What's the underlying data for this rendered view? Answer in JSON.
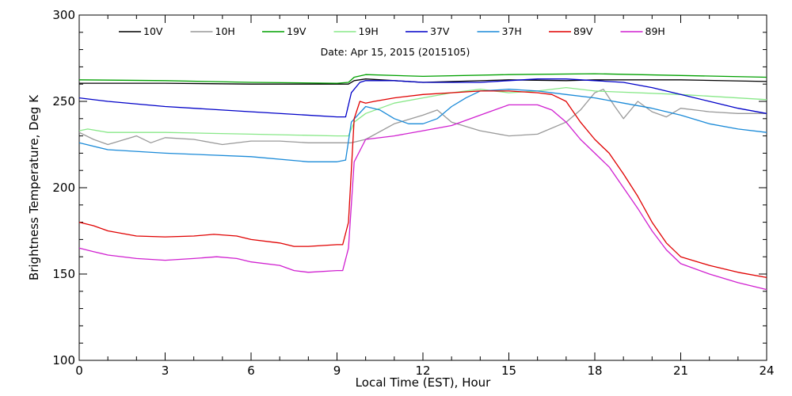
{
  "chart_data": {
    "type": "line",
    "title": "",
    "subtitle": "Date: Apr 15, 2015 (2015105)",
    "xlabel": "Local Time (EST), Hour",
    "ylabel": "Brightness Temperature, Deg K",
    "xlim": [
      0,
      24
    ],
    "ylim": [
      100,
      300
    ],
    "xticks": [
      0,
      3,
      6,
      9,
      12,
      15,
      18,
      21,
      24
    ],
    "yticks": [
      100,
      150,
      200,
      250,
      300
    ],
    "grid": false,
    "legend_position": "top",
    "series": [
      {
        "name": "10V",
        "color": "#000000",
        "points": [
          [
            0,
            260.5
          ],
          [
            3,
            260.5
          ],
          [
            6,
            260
          ],
          [
            9,
            260
          ],
          [
            9.4,
            260
          ],
          [
            9.6,
            262
          ],
          [
            10,
            263
          ],
          [
            11,
            262
          ],
          [
            12,
            261
          ],
          [
            15,
            262.5
          ],
          [
            17,
            262
          ],
          [
            18,
            262.5
          ],
          [
            21,
            262.5
          ],
          [
            24,
            261.5
          ]
        ]
      },
      {
        "name": "10H",
        "color": "#999999",
        "points": [
          [
            0,
            232
          ],
          [
            0.5,
            228
          ],
          [
            1,
            225
          ],
          [
            2,
            230
          ],
          [
            2.5,
            226
          ],
          [
            3,
            229
          ],
          [
            4,
            228
          ],
          [
            5,
            225
          ],
          [
            6,
            227
          ],
          [
            7,
            227
          ],
          [
            8,
            226
          ],
          [
            9,
            226
          ],
          [
            9.5,
            226
          ],
          [
            10,
            228
          ],
          [
            11,
            237
          ],
          [
            12,
            242
          ],
          [
            12.5,
            245
          ],
          [
            13,
            238
          ],
          [
            14,
            233
          ],
          [
            15,
            230
          ],
          [
            16,
            231
          ],
          [
            17,
            238
          ],
          [
            17.5,
            245
          ],
          [
            18,
            255
          ],
          [
            18.3,
            257
          ],
          [
            18.7,
            247
          ],
          [
            19,
            240
          ],
          [
            19.5,
            250
          ],
          [
            20,
            244
          ],
          [
            20.5,
            241
          ],
          [
            21,
            246
          ],
          [
            22,
            244
          ],
          [
            23,
            243
          ],
          [
            24,
            243
          ]
        ]
      },
      {
        "name": "19V",
        "color": "#00a000",
        "points": [
          [
            0,
            262.5
          ],
          [
            3,
            262
          ],
          [
            6,
            261
          ],
          [
            9,
            260.5
          ],
          [
            9.4,
            261
          ],
          [
            9.6,
            264
          ],
          [
            10,
            265.5
          ],
          [
            12,
            264.5
          ],
          [
            15,
            265.5
          ],
          [
            18,
            266
          ],
          [
            21,
            265
          ],
          [
            24,
            264
          ]
        ]
      },
      {
        "name": "19H",
        "color": "#88e888",
        "points": [
          [
            0,
            233
          ],
          [
            0.3,
            234
          ],
          [
            1,
            232
          ],
          [
            3,
            232
          ],
          [
            6,
            231
          ],
          [
            9,
            230
          ],
          [
            9.4,
            230
          ],
          [
            9.6,
            238
          ],
          [
            10,
            243
          ],
          [
            11,
            249
          ],
          [
            12,
            252
          ],
          [
            13,
            255
          ],
          [
            14,
            257
          ],
          [
            15,
            255
          ],
          [
            16,
            256
          ],
          [
            17,
            258
          ],
          [
            18,
            256
          ],
          [
            21,
            254
          ],
          [
            24,
            251
          ]
        ]
      },
      {
        "name": "37V",
        "color": "#0000c8",
        "points": [
          [
            0,
            252
          ],
          [
            1,
            250
          ],
          [
            3,
            247
          ],
          [
            6,
            244
          ],
          [
            9,
            241
          ],
          [
            9.3,
            241
          ],
          [
            9.5,
            255
          ],
          [
            9.8,
            261
          ],
          [
            10,
            262
          ],
          [
            11,
            262
          ],
          [
            12,
            261
          ],
          [
            14,
            261
          ],
          [
            15,
            262
          ],
          [
            16,
            263
          ],
          [
            17,
            263
          ],
          [
            18,
            262
          ],
          [
            19,
            261
          ],
          [
            20,
            258
          ],
          [
            21,
            254
          ],
          [
            22,
            250
          ],
          [
            23,
            246
          ],
          [
            24,
            243
          ]
        ]
      },
      {
        "name": "37H",
        "color": "#1a8ad8",
        "points": [
          [
            0,
            226
          ],
          [
            1,
            222
          ],
          [
            3,
            220
          ],
          [
            6,
            218
          ],
          [
            8,
            215
          ],
          [
            9,
            215
          ],
          [
            9.3,
            216
          ],
          [
            9.5,
            238
          ],
          [
            10,
            247
          ],
          [
            10.5,
            245
          ],
          [
            11,
            240
          ],
          [
            11.5,
            237
          ],
          [
            12,
            237
          ],
          [
            12.5,
            240
          ],
          [
            13,
            247
          ],
          [
            13.5,
            252
          ],
          [
            14,
            256
          ],
          [
            15,
            257
          ],
          [
            16,
            256
          ],
          [
            17,
            254
          ],
          [
            18,
            252
          ],
          [
            19,
            249
          ],
          [
            20,
            246
          ],
          [
            21,
            242
          ],
          [
            22,
            237
          ],
          [
            23,
            234
          ],
          [
            24,
            232
          ]
        ]
      },
      {
        "name": "89V",
        "color": "#e00000",
        "points": [
          [
            0,
            180
          ],
          [
            0.5,
            178
          ],
          [
            1,
            175
          ],
          [
            2,
            172
          ],
          [
            3,
            171.5
          ],
          [
            4,
            172
          ],
          [
            4.7,
            173
          ],
          [
            5.5,
            172
          ],
          [
            6,
            170
          ],
          [
            7,
            168
          ],
          [
            7.5,
            166
          ],
          [
            8,
            166
          ],
          [
            9,
            167
          ],
          [
            9.2,
            167
          ],
          [
            9.4,
            180
          ],
          [
            9.6,
            240
          ],
          [
            9.8,
            250
          ],
          [
            10,
            249
          ],
          [
            10.3,
            250
          ],
          [
            11,
            252
          ],
          [
            12,
            254
          ],
          [
            13,
            255
          ],
          [
            14,
            256
          ],
          [
            15,
            256
          ],
          [
            16,
            255
          ],
          [
            16.5,
            254
          ],
          [
            17,
            250
          ],
          [
            17.5,
            238
          ],
          [
            18,
            228
          ],
          [
            18.5,
            220
          ],
          [
            19,
            208
          ],
          [
            19.5,
            195
          ],
          [
            20,
            180
          ],
          [
            20.5,
            168
          ],
          [
            21,
            160
          ],
          [
            22,
            155
          ],
          [
            23,
            151
          ],
          [
            24,
            148
          ]
        ]
      },
      {
        "name": "89H",
        "color": "#d020d0",
        "points": [
          [
            0,
            165
          ],
          [
            0.5,
            163
          ],
          [
            1,
            161
          ],
          [
            2,
            159
          ],
          [
            3,
            158
          ],
          [
            4,
            159
          ],
          [
            4.8,
            160
          ],
          [
            5.5,
            159
          ],
          [
            6,
            157
          ],
          [
            7,
            155
          ],
          [
            7.5,
            152
          ],
          [
            8,
            151
          ],
          [
            9,
            152
          ],
          [
            9.2,
            152
          ],
          [
            9.4,
            165
          ],
          [
            9.6,
            215
          ],
          [
            10,
            228
          ],
          [
            11,
            230
          ],
          [
            12,
            233
          ],
          [
            13,
            236
          ],
          [
            14,
            242
          ],
          [
            15,
            248
          ],
          [
            16,
            248
          ],
          [
            16.5,
            245
          ],
          [
            17,
            238
          ],
          [
            17.5,
            228
          ],
          [
            18,
            220
          ],
          [
            18.5,
            212
          ],
          [
            19,
            200
          ],
          [
            19.5,
            188
          ],
          [
            20,
            175
          ],
          [
            20.5,
            164
          ],
          [
            21,
            156
          ],
          [
            22,
            150
          ],
          [
            23,
            145
          ],
          [
            24,
            141
          ]
        ]
      }
    ]
  }
}
